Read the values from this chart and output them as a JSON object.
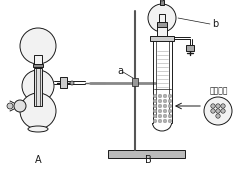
{
  "background": "#ffffff",
  "label_A": "A",
  "label_B": "B",
  "label_a": "a",
  "label_b": "b",
  "label_sieve": "多孔筛网",
  "line_color": "#1a1a1a",
  "gray_fill": "#c8c8c8",
  "light_fill": "#f2f2f2",
  "dark_fill": "#888888"
}
